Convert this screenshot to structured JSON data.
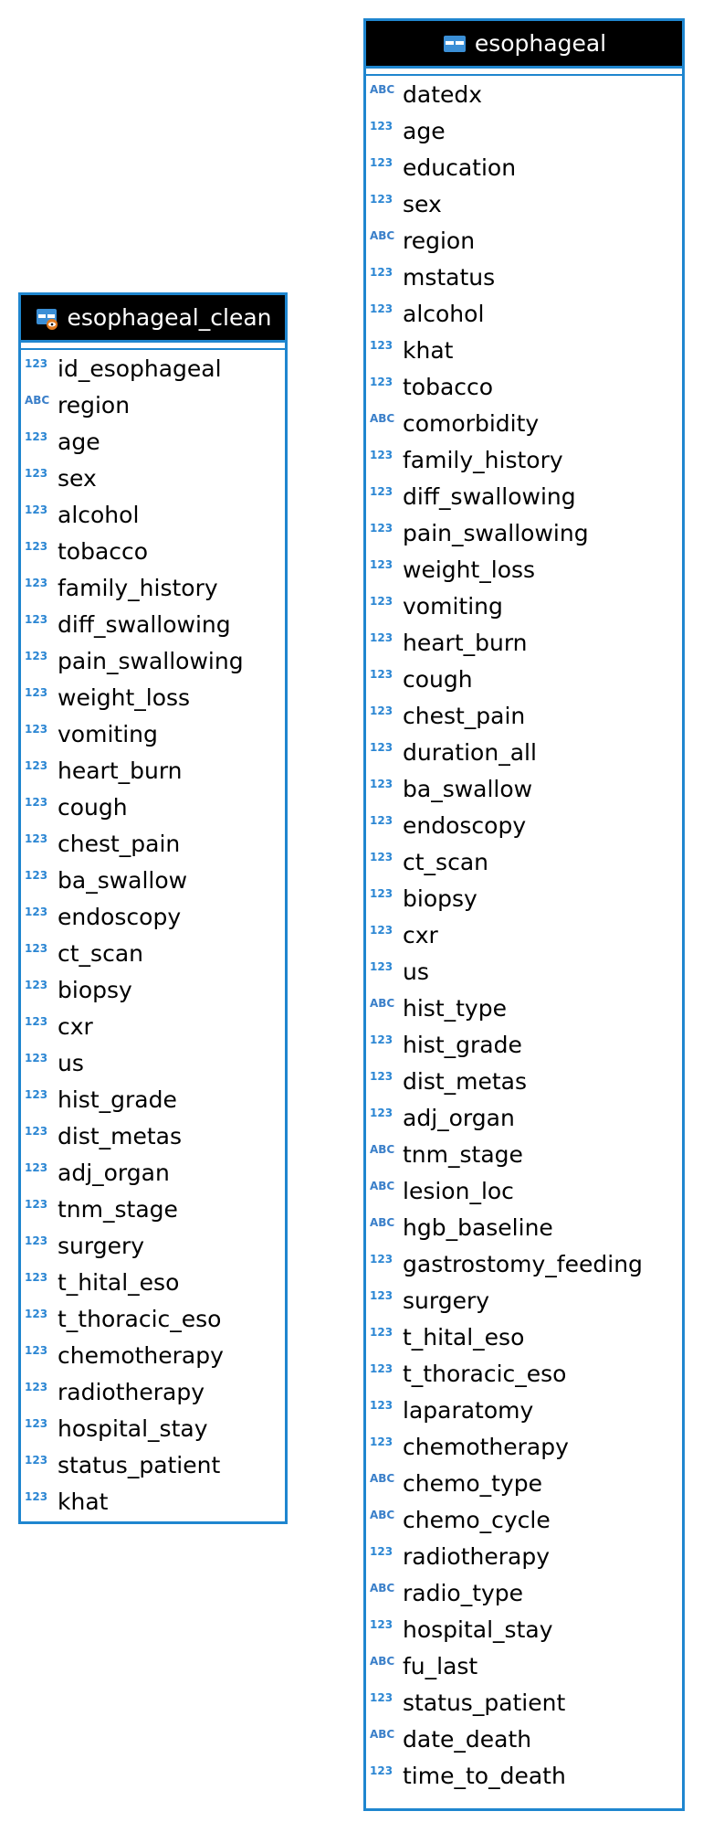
{
  "colors": {
    "accent": "#1f86cf",
    "header_bg": "#000000",
    "header_text": "#ffffff",
    "type_badge": "#2b86d3"
  },
  "tables": [
    {
      "name": "esophageal_clean",
      "icon": "view-table-icon",
      "columns": [
        {
          "type": "123",
          "name": "id_esophageal"
        },
        {
          "type": "ABC",
          "name": "region"
        },
        {
          "type": "123",
          "name": "age"
        },
        {
          "type": "123",
          "name": "sex"
        },
        {
          "type": "123",
          "name": "alcohol"
        },
        {
          "type": "123",
          "name": "tobacco"
        },
        {
          "type": "123",
          "name": "family_history"
        },
        {
          "type": "123",
          "name": "diff_swallowing"
        },
        {
          "type": "123",
          "name": "pain_swallowing"
        },
        {
          "type": "123",
          "name": "weight_loss"
        },
        {
          "type": "123",
          "name": "vomiting"
        },
        {
          "type": "123",
          "name": "heart_burn"
        },
        {
          "type": "123",
          "name": "cough"
        },
        {
          "type": "123",
          "name": "chest_pain"
        },
        {
          "type": "123",
          "name": "ba_swallow"
        },
        {
          "type": "123",
          "name": "endoscopy"
        },
        {
          "type": "123",
          "name": "ct_scan"
        },
        {
          "type": "123",
          "name": "biopsy"
        },
        {
          "type": "123",
          "name": "cxr"
        },
        {
          "type": "123",
          "name": "us"
        },
        {
          "type": "123",
          "name": "hist_grade"
        },
        {
          "type": "123",
          "name": "dist_metas"
        },
        {
          "type": "123",
          "name": "adj_organ"
        },
        {
          "type": "123",
          "name": "tnm_stage"
        },
        {
          "type": "123",
          "name": "surgery"
        },
        {
          "type": "123",
          "name": "t_hital_eso"
        },
        {
          "type": "123",
          "name": "t_thoracic_eso"
        },
        {
          "type": "123",
          "name": "chemotherapy"
        },
        {
          "type": "123",
          "name": "radiotherapy"
        },
        {
          "type": "123",
          "name": "hospital_stay"
        },
        {
          "type": "123",
          "name": "status_patient"
        },
        {
          "type": "123",
          "name": "khat"
        }
      ]
    },
    {
      "name": "esophageal",
      "icon": "table-icon",
      "columns": [
        {
          "type": "ABC",
          "name": "datedx"
        },
        {
          "type": "123",
          "name": "age"
        },
        {
          "type": "123",
          "name": "education"
        },
        {
          "type": "123",
          "name": "sex"
        },
        {
          "type": "ABC",
          "name": "region"
        },
        {
          "type": "123",
          "name": "mstatus"
        },
        {
          "type": "123",
          "name": "alcohol"
        },
        {
          "type": "123",
          "name": "khat"
        },
        {
          "type": "123",
          "name": "tobacco"
        },
        {
          "type": "ABC",
          "name": "comorbidity"
        },
        {
          "type": "123",
          "name": "family_history"
        },
        {
          "type": "123",
          "name": "diff_swallowing"
        },
        {
          "type": "123",
          "name": "pain_swallowing"
        },
        {
          "type": "123",
          "name": "weight_loss"
        },
        {
          "type": "123",
          "name": "vomiting"
        },
        {
          "type": "123",
          "name": "heart_burn"
        },
        {
          "type": "123",
          "name": "cough"
        },
        {
          "type": "123",
          "name": "chest_pain"
        },
        {
          "type": "123",
          "name": "duration_all"
        },
        {
          "type": "123",
          "name": "ba_swallow"
        },
        {
          "type": "123",
          "name": "endoscopy"
        },
        {
          "type": "123",
          "name": "ct_scan"
        },
        {
          "type": "123",
          "name": "biopsy"
        },
        {
          "type": "123",
          "name": "cxr"
        },
        {
          "type": "123",
          "name": "us"
        },
        {
          "type": "ABC",
          "name": "hist_type"
        },
        {
          "type": "123",
          "name": "hist_grade"
        },
        {
          "type": "123",
          "name": "dist_metas"
        },
        {
          "type": "123",
          "name": "adj_organ"
        },
        {
          "type": "ABC",
          "name": "tnm_stage"
        },
        {
          "type": "ABC",
          "name": "lesion_loc"
        },
        {
          "type": "ABC",
          "name": "hgb_baseline"
        },
        {
          "type": "123",
          "name": "gastrostomy_feeding"
        },
        {
          "type": "123",
          "name": "surgery"
        },
        {
          "type": "123",
          "name": "t_hital_eso"
        },
        {
          "type": "123",
          "name": "t_thoracic_eso"
        },
        {
          "type": "123",
          "name": "laparatomy"
        },
        {
          "type": "123",
          "name": "chemotherapy"
        },
        {
          "type": "ABC",
          "name": "chemo_type"
        },
        {
          "type": "ABC",
          "name": "chemo_cycle"
        },
        {
          "type": "123",
          "name": "radiotherapy"
        },
        {
          "type": "ABC",
          "name": "radio_type"
        },
        {
          "type": "123",
          "name": "hospital_stay"
        },
        {
          "type": "ABC",
          "name": "fu_last"
        },
        {
          "type": "123",
          "name": "status_patient"
        },
        {
          "type": "ABC",
          "name": "date_death"
        },
        {
          "type": "123",
          "name": "time_to_death"
        }
      ]
    }
  ]
}
